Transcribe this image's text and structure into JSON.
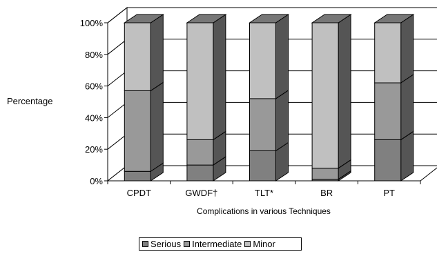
{
  "chart_data": {
    "type": "bar",
    "stacked": true,
    "three_d": true,
    "ylabel": "Percentage",
    "xlabel": "Complications in various Techniques",
    "ylim": [
      0,
      100
    ],
    "yticks": [
      "0%",
      "20%",
      "40%",
      "60%",
      "80%",
      "100%"
    ],
    "grid": true,
    "legend_position": "bottom",
    "categories": [
      "CPDT",
      "GWDF†",
      "TLT*",
      "BR",
      "PT"
    ],
    "series": [
      {
        "name": "Serious",
        "values": [
          6,
          10,
          19,
          1,
          26
        ],
        "color": "#808080"
      },
      {
        "name": "Intermediate",
        "values": [
          51,
          16,
          33,
          7,
          36
        ],
        "color": "#999999"
      },
      {
        "name": "Minor",
        "values": [
          43,
          74,
          48,
          92,
          38
        ],
        "color": "#c0c0c0"
      }
    ]
  }
}
